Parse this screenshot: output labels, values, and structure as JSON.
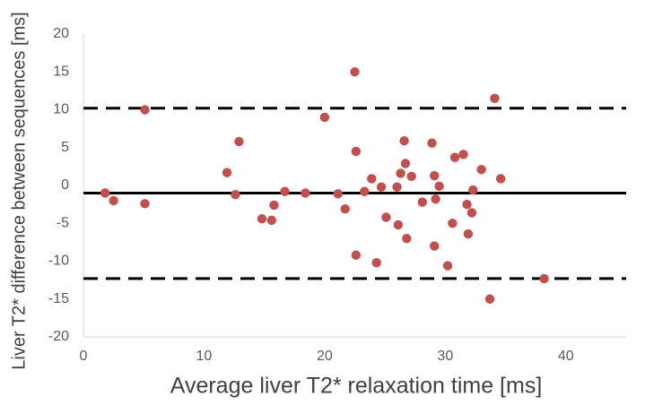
{
  "chart_data": {
    "type": "scatter",
    "title": "",
    "xlabel": "Average liver T2* relaxation time [ms]",
    "ylabel": "Liver T2* difference between sequences [ms]",
    "xlim": [
      0,
      45
    ],
    "ylim": [
      -20,
      20
    ],
    "x_ticks": [
      0,
      10,
      20,
      30,
      40
    ],
    "y_ticks": [
      20,
      15,
      10,
      5,
      0,
      -5,
      -10,
      -15,
      -20
    ],
    "grid": false,
    "marker_color": "#C0504D",
    "line_color": "#000000",
    "reference_lines": [
      {
        "name": "mean-difference",
        "y": -1.0,
        "style": "solid"
      },
      {
        "name": "upper-limit-of-agreement",
        "y": 10.2,
        "style": "dashed"
      },
      {
        "name": "lower-limit-of-agreement",
        "y": -12.3,
        "style": "dashed"
      }
    ],
    "series": [
      {
        "name": "measurements",
        "points": [
          {
            "x": 1.8,
            "y": -1.0
          },
          {
            "x": 2.5,
            "y": -2.0
          },
          {
            "x": 5.1,
            "y": 10.0
          },
          {
            "x": 5.1,
            "y": -2.4
          },
          {
            "x": 11.9,
            "y": 1.7
          },
          {
            "x": 12.6,
            "y": -1.2
          },
          {
            "x": 12.9,
            "y": 5.8
          },
          {
            "x": 14.8,
            "y": -4.4
          },
          {
            "x": 15.6,
            "y": -4.6
          },
          {
            "x": 15.8,
            "y": -2.6
          },
          {
            "x": 16.7,
            "y": -0.8
          },
          {
            "x": 18.4,
            "y": -1.0
          },
          {
            "x": 20.0,
            "y": 9.0
          },
          {
            "x": 21.1,
            "y": -1.1
          },
          {
            "x": 21.7,
            "y": -3.1
          },
          {
            "x": 22.5,
            "y": 15.0
          },
          {
            "x": 22.6,
            "y": 4.5
          },
          {
            "x": 22.6,
            "y": -9.2
          },
          {
            "x": 23.3,
            "y": -0.8
          },
          {
            "x": 23.9,
            "y": 0.9
          },
          {
            "x": 24.3,
            "y": -10.2
          },
          {
            "x": 24.7,
            "y": -0.2
          },
          {
            "x": 25.1,
            "y": -4.2
          },
          {
            "x": 26.0,
            "y": -0.2
          },
          {
            "x": 26.1,
            "y": -5.2
          },
          {
            "x": 26.3,
            "y": 1.6
          },
          {
            "x": 26.6,
            "y": 5.9
          },
          {
            "x": 26.7,
            "y": 2.9
          },
          {
            "x": 26.8,
            "y": -7.0
          },
          {
            "x": 27.2,
            "y": 1.2
          },
          {
            "x": 28.1,
            "y": -2.2
          },
          {
            "x": 28.9,
            "y": 5.6
          },
          {
            "x": 29.1,
            "y": -8.0
          },
          {
            "x": 29.1,
            "y": 1.3
          },
          {
            "x": 29.2,
            "y": -1.8
          },
          {
            "x": 29.5,
            "y": -0.1
          },
          {
            "x": 30.2,
            "y": -10.6
          },
          {
            "x": 30.6,
            "y": -5.0
          },
          {
            "x": 30.8,
            "y": 3.7
          },
          {
            "x": 31.5,
            "y": 4.1
          },
          {
            "x": 31.8,
            "y": -2.5
          },
          {
            "x": 31.9,
            "y": -6.4
          },
          {
            "x": 32.2,
            "y": -3.6
          },
          {
            "x": 32.3,
            "y": -0.6
          },
          {
            "x": 33.0,
            "y": 2.1
          },
          {
            "x": 33.7,
            "y": -15.0
          },
          {
            "x": 34.1,
            "y": 11.5
          },
          {
            "x": 34.6,
            "y": 0.9
          },
          {
            "x": 38.2,
            "y": -12.3
          }
        ]
      }
    ]
  }
}
